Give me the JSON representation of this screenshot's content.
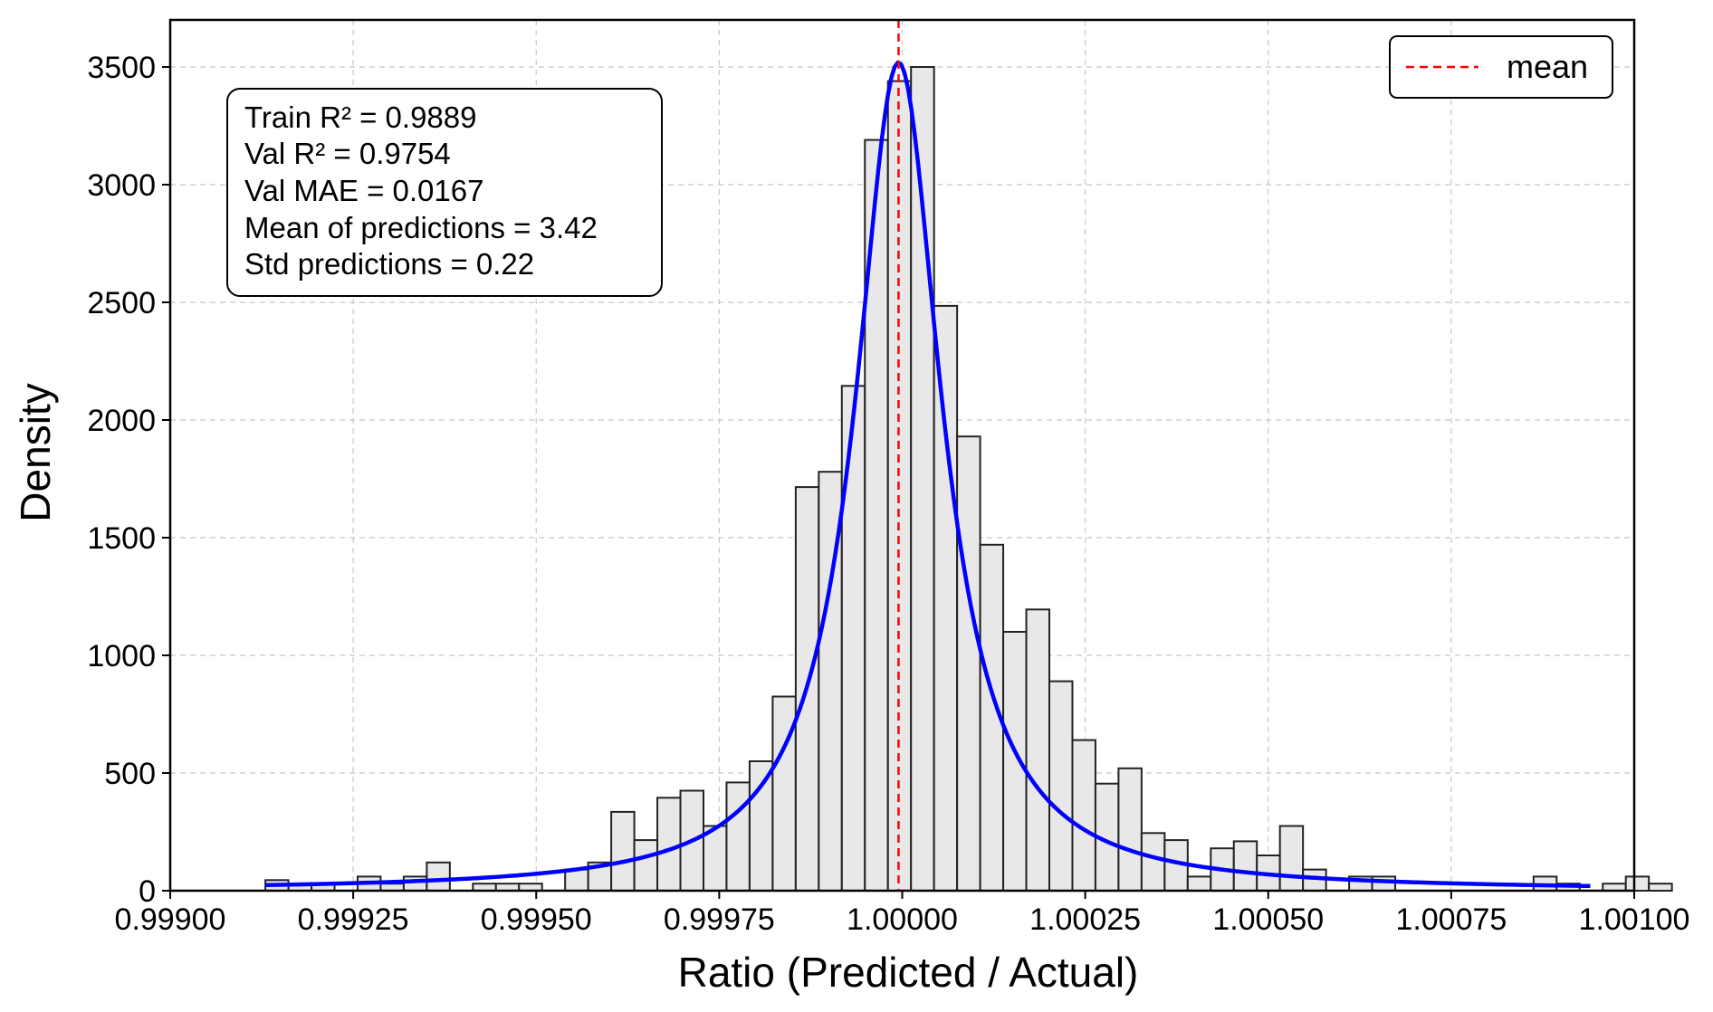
{
  "chart_data": {
    "type": "bar",
    "title": "",
    "xlabel": "Ratio (Predicted / Actual)",
    "ylabel": "Density",
    "xlim": [
      0.999,
      1.001
    ],
    "ylim": [
      0,
      3700
    ],
    "x_ticks": [
      0.999,
      0.99925,
      0.9995,
      0.99975,
      1.0,
      1.00025,
      1.0005,
      1.00075,
      1.001
    ],
    "x_tick_labels": [
      "0.99900",
      "0.99925",
      "0.99950",
      "0.99975",
      "1.00000",
      "1.00025",
      "1.00050",
      "1.00075",
      "1.00100"
    ],
    "y_ticks": [
      0,
      500,
      1000,
      1500,
      2000,
      2500,
      3000,
      3500
    ],
    "y_tick_labels": [
      "0",
      "500",
      "1000",
      "1500",
      "2000",
      "2500",
      "3000",
      "3500"
    ],
    "grid": true,
    "legend_position": "top-right",
    "bin_start": 0.99913,
    "bin_width": 3.15e-05,
    "histogram": [
      45,
      30,
      30,
      0,
      60,
      30,
      60,
      120,
      0,
      30,
      30,
      30,
      0,
      90,
      120,
      335,
      215,
      395,
      425,
      275,
      460,
      550,
      825,
      1715,
      1780,
      2145,
      3190,
      3440,
      3500,
      2485,
      1930,
      1470,
      1100,
      1195,
      890,
      640,
      455,
      520,
      245,
      215,
      60,
      180,
      210,
      150,
      275,
      90,
      0,
      60,
      60,
      0,
      0,
      0,
      0,
      0,
      0,
      60,
      30,
      0,
      30,
      60,
      30
    ],
    "mean_line": {
      "x": 0.999995,
      "label": "mean",
      "color": "#ff0000"
    },
    "fit_curve": {
      "type": "lorentzian",
      "center": 0.999995,
      "peak": 3520,
      "hwhm": 7.15e-05,
      "baseline": 0,
      "x_range": [
        0.99913,
        1.00094
      ],
      "color": "#0000ff"
    },
    "bar_fill": "#e8e8e8",
    "bar_edge": "#222222",
    "annotation_lines": [
      "Train R² = 0.9889",
      "Val R² = 0.9754",
      "Val MAE = 0.0167",
      "Mean of predictions = 3.42",
      "Std predictions = 0.22"
    ],
    "legend": [
      {
        "label": "mean",
        "style": "dashed",
        "color": "#ff0000"
      }
    ]
  }
}
